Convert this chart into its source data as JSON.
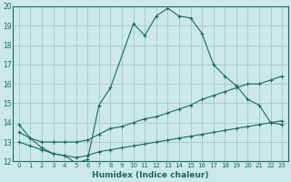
{
  "xlabel": "Humidex (Indice chaleur)",
  "bg_color": "#cce8e8",
  "grid_color": "#aacccc",
  "line_color": "#1a6b5a",
  "ylim": [
    12,
    20
  ],
  "xlim": [
    0,
    23
  ],
  "yticks": [
    12,
    13,
    14,
    15,
    16,
    17,
    18,
    19,
    20
  ],
  "xticks": [
    0,
    1,
    2,
    3,
    4,
    5,
    6,
    7,
    8,
    9,
    10,
    11,
    12,
    13,
    14,
    15,
    16,
    17,
    18,
    19,
    20,
    21,
    22,
    23
  ],
  "line1_x": [
    0,
    1,
    2,
    3,
    4,
    5,
    6,
    7,
    8,
    10,
    11,
    12,
    13,
    14,
    15,
    16,
    17,
    18,
    19,
    20,
    21,
    22,
    23
  ],
  "line1_y": [
    13.9,
    13.2,
    12.7,
    12.4,
    12.3,
    11.9,
    12.1,
    14.9,
    15.8,
    19.1,
    18.5,
    19.5,
    19.9,
    19.5,
    19.4,
    18.6,
    17.0,
    16.4,
    15.9,
    15.2,
    14.9,
    14.0,
    13.9
  ],
  "line2_x": [
    0,
    1,
    2,
    3,
    4,
    5,
    6,
    7,
    8,
    9,
    10,
    11,
    12,
    13,
    14,
    15,
    16,
    17,
    18,
    19,
    20,
    21,
    22,
    23
  ],
  "line2_y": [
    13.5,
    13.2,
    13.0,
    13.0,
    13.0,
    13.0,
    13.1,
    13.4,
    13.7,
    13.8,
    14.0,
    14.2,
    14.3,
    14.5,
    14.7,
    14.9,
    15.2,
    15.4,
    15.6,
    15.8,
    16.0,
    16.0,
    16.2,
    16.4
  ],
  "line3_x": [
    0,
    1,
    2,
    3,
    4,
    5,
    6,
    7,
    8,
    9,
    10,
    11,
    12,
    13,
    14,
    15,
    16,
    17,
    18,
    19,
    20,
    21,
    22,
    23
  ],
  "line3_y": [
    13.0,
    12.8,
    12.6,
    12.4,
    12.3,
    12.2,
    12.3,
    12.5,
    12.6,
    12.7,
    12.8,
    12.9,
    13.0,
    13.1,
    13.2,
    13.3,
    13.4,
    13.5,
    13.6,
    13.7,
    13.8,
    13.9,
    14.0,
    14.1
  ]
}
